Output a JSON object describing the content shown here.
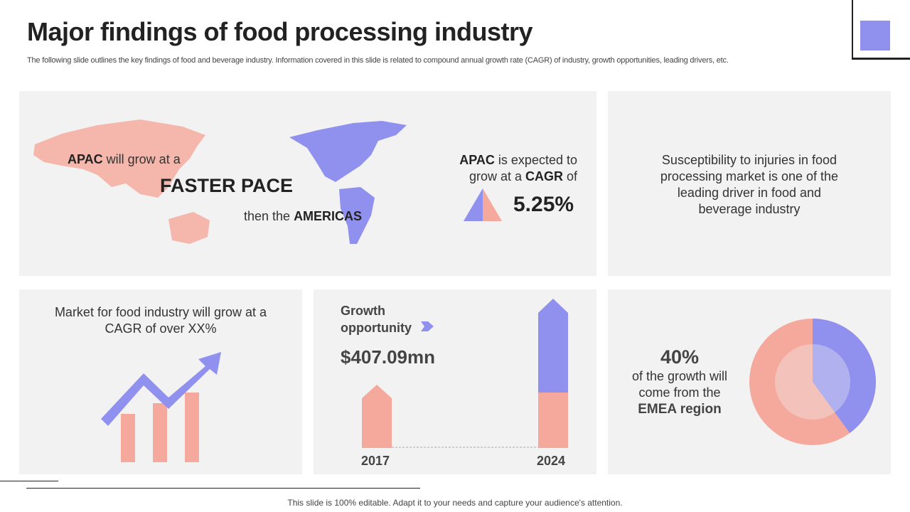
{
  "title": "Major findings of food processing industry",
  "subtitle": "The following slide outlines the key findings of food and beverage industry. Information covered in this slide is related to compound annual growth rate (CAGR) of industry, growth opportunities, leading drivers, etc.",
  "colors": {
    "accent": "#9090ee",
    "salmon": "#f5a99d",
    "panel": "#f2f2f2"
  },
  "map_panel": {
    "apac": "APAC",
    "grow_at": " will grow at a",
    "faster": "FASTER PACE",
    "then": "then the ",
    "americas": "AMERICAS"
  },
  "cagr_panel": {
    "apac": "APAC",
    "expected": " is expected to",
    "grow_line": "grow at a ",
    "cagr": "CAGR",
    "of": " of",
    "value": "5.25%"
  },
  "driver_panel": {
    "text": "Susceptibility to injuries in food processing market is one of the leading driver in food and beverage industry"
  },
  "market_panel": {
    "text": "Market for food industry will grow at a CAGR of over XX%"
  },
  "growth_panel": {
    "label1": "Growth",
    "label2": "opportunity",
    "value": "$407.09mn",
    "year1": "2017",
    "year2": "2024"
  },
  "emea_panel": {
    "percent": "40%",
    "line1": "of the growth will",
    "line2": "come from the",
    "region": "EMEA region",
    "share": 40
  },
  "footer": "This slide is 100% editable. Adapt it to your needs and capture your audience's attention."
}
